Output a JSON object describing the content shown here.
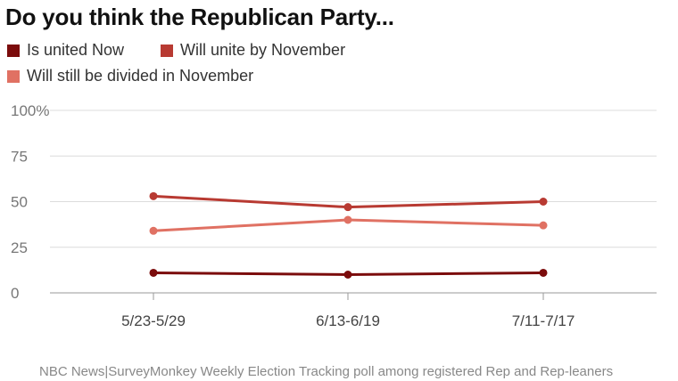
{
  "title": "Do you think the Republican Party...",
  "source": "NBC News|SurveyMonkey Weekly Election Tracking poll among registered Rep and Rep-leaners",
  "chart_data": {
    "type": "line",
    "categories": [
      "5/23-5/29",
      "6/13-6/19",
      "7/11-7/17"
    ],
    "ylim": [
      0,
      100
    ],
    "yticks": [
      "0",
      "25",
      "50",
      "75",
      "100%"
    ],
    "grid": true,
    "legend_position": "top-left",
    "series": [
      {
        "name": "Is united Now",
        "color": "#7b0c0c",
        "values": [
          11,
          10,
          11
        ]
      },
      {
        "name": "Will unite by November",
        "color": "#b83a32",
        "values": [
          53,
          47,
          50
        ]
      },
      {
        "name": "Will still be divided in November",
        "color": "#e07163",
        "values": [
          34,
          40,
          37
        ]
      }
    ]
  }
}
